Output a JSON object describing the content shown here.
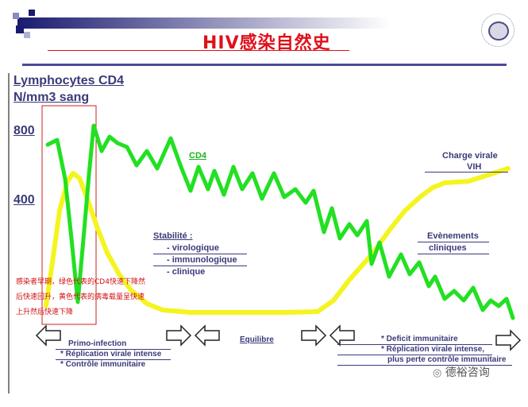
{
  "slide": {
    "title": "HIV感染自然史",
    "y_axis_label_line1": "Lymphocytes CD4",
    "y_axis_label_line2": "N/mm3 sang",
    "tick_800": "800",
    "tick_400": "400"
  },
  "labels": {
    "cd4": "CD4",
    "charge_virale_line1": "Charge virale",
    "charge_virale_line2": "VIH",
    "stabilite": "Stabilité :",
    "virologique": "- virologique",
    "immunologique": "- immunologique",
    "clinique": "- clinique",
    "evenements_line1": "Evènements",
    "evenements_line2": "cliniques",
    "primo_infection": "Primo-infection",
    "replication_intense": "*  Réplication virale intense",
    "controle_immunitaire": "* Contrôle immunitaire",
    "equilibre": "Equilibre",
    "deficit_immunitaire": "* Deficit immunitaire",
    "replication_intense_2": "* Réplication virale intense,",
    "perte_controle": "plus perte contrôle immunitaire"
  },
  "annotation": {
    "line1": "感染者早期，绿色代表的CD4快速下降然",
    "line2": "后快速回升，黄色代表的病毒载量呈快速",
    "line3": "上升然后快速下降"
  },
  "watermark": "德裕咨询",
  "colors": {
    "cd4_line": "#22e022",
    "viral_load_line": "#f4f420",
    "title": "#e0101a",
    "text": "#3a3a7a",
    "annotation": "#d01010"
  }
}
